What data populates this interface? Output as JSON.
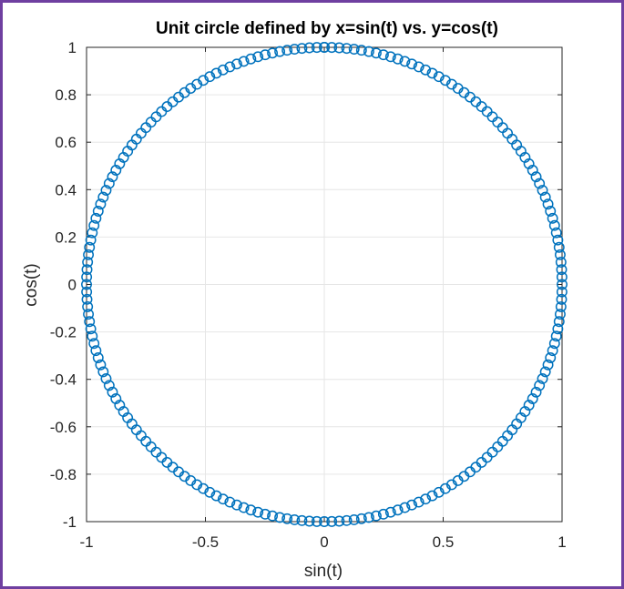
{
  "chart_data": {
    "type": "scatter",
    "title": "Unit circle defined by x=sin(t) vs. y=cos(t)",
    "xlabel": "sin(t)",
    "ylabel": "cos(t)",
    "xlim": [
      -1,
      1
    ],
    "ylim": [
      -1,
      1
    ],
    "xticks": [
      -1,
      -0.5,
      0,
      0.5,
      1
    ],
    "xtick_labels": [
      "-1",
      "-0.5",
      "0",
      "0.5",
      "1"
    ],
    "yticks": [
      -1,
      -0.8,
      -0.6,
      -0.4,
      -0.2,
      0,
      0.2,
      0.4,
      0.6,
      0.8,
      1
    ],
    "ytick_labels": [
      "-1",
      "-0.8",
      "-0.6",
      "-0.4",
      "-0.2",
      "0",
      "0.2",
      "0.4",
      "0.6",
      "0.8",
      "1"
    ],
    "grid": true,
    "marker": "circle-open",
    "series_color": "#0072BD",
    "parametric": {
      "x": "sin(t)",
      "y": "cos(t)",
      "t_range": [
        0,
        6.2832
      ],
      "num_points": 201
    }
  },
  "colors": {
    "frame_border": "#6f3fa0",
    "axis": "#262626",
    "grid": "#e6e6e6"
  }
}
